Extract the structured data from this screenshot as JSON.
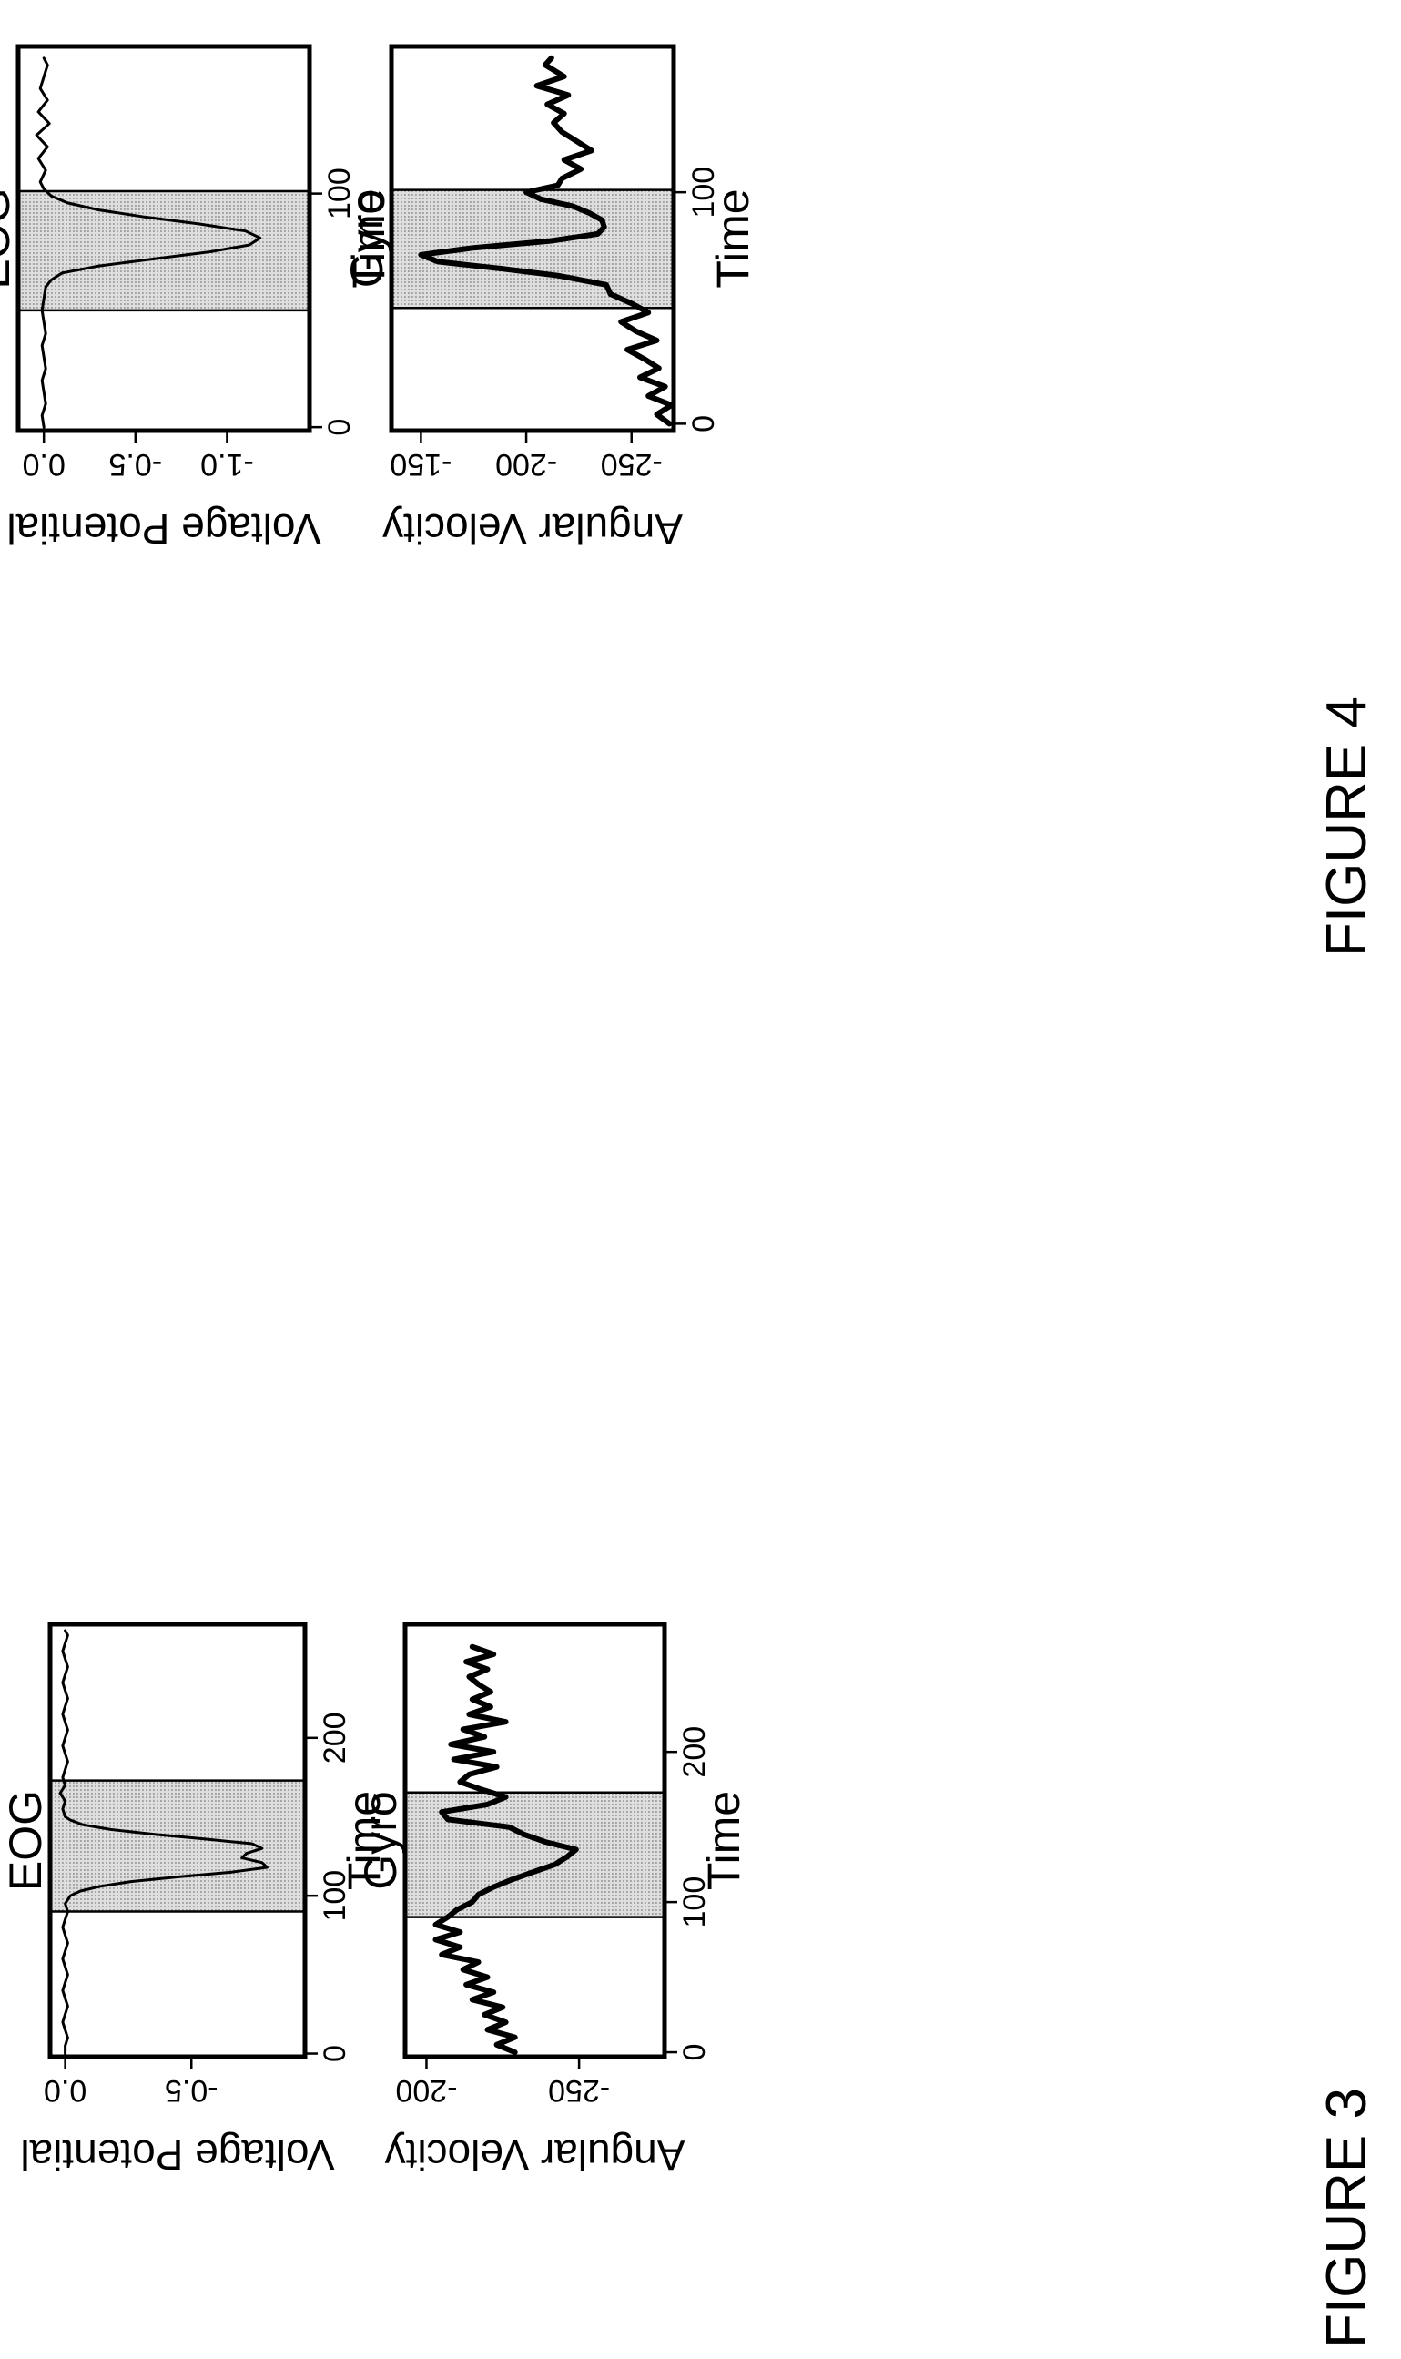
{
  "figures": [
    {
      "caption": "FIGURE 3"
    },
    {
      "caption": "FIGURE 4"
    }
  ],
  "chart_data": [
    {
      "figure": "FIGURE 3",
      "type": "line",
      "title": "EOG",
      "xlabel": "Time",
      "ylabel": "Voltage Potential",
      "xlim": [
        -2,
        272
      ],
      "ylim": [
        -0.95,
        0.06
      ],
      "xticks": [
        0,
        100,
        200
      ],
      "xtick_labels": [
        "0",
        "100",
        "200"
      ],
      "yticks": [
        0.0,
        -0.5
      ],
      "ytick_labels": [
        "0.0",
        "-0.5"
      ],
      "highlight": {
        "x_start": 90,
        "x_end": 173,
        "fill": "#dedede"
      },
      "grid": false,
      "series": [
        {
          "line_width": 3,
          "color": "#000000",
          "x": [
            0,
            5,
            10,
            15,
            20,
            25,
            30,
            35,
            40,
            45,
            50,
            55,
            60,
            65,
            70,
            75,
            80,
            85,
            90,
            95,
            100,
            103,
            106,
            109,
            112,
            115,
            118,
            121,
            124,
            127,
            130,
            133,
            136,
            139,
            142,
            145,
            148,
            150,
            155,
            160,
            165,
            170,
            175,
            180,
            185,
            190,
            195,
            200,
            205,
            210,
            215,
            220,
            225,
            230,
            235,
            240,
            245,
            250,
            255,
            260,
            265,
            268
          ],
          "y": [
            0.0,
            0.0,
            -0.01,
            0.0,
            0.01,
            0.0,
            -0.01,
            0.0,
            0.01,
            0.0,
            -0.01,
            0.0,
            0.01,
            0.0,
            -0.01,
            0.0,
            0.01,
            0.0,
            -0.01,
            0.0,
            -0.02,
            -0.06,
            -0.14,
            -0.26,
            -0.45,
            -0.66,
            -0.8,
            -0.78,
            -0.7,
            -0.72,
            -0.78,
            -0.74,
            -0.55,
            -0.35,
            -0.18,
            -0.07,
            -0.02,
            0.0,
            0.01,
            0.0,
            0.02,
            0.0,
            0.01,
            0.0,
            -0.01,
            0.0,
            0.01,
            0.0,
            -0.01,
            0.0,
            0.01,
            0.0,
            -0.01,
            0.0,
            0.01,
            0.0,
            -0.01,
            0.0,
            0.01,
            0.0,
            -0.01,
            0.0
          ]
        }
      ]
    },
    {
      "figure": "FIGURE 3",
      "type": "line",
      "title": "Gyro",
      "xlabel": "Time",
      "ylabel": "Angular Velocity",
      "xlim": [
        -3,
        285
      ],
      "ylim": [
        -278,
        -193
      ],
      "xticks": [
        0,
        100,
        200
      ],
      "xtick_labels": [
        "0",
        "100",
        "200"
      ],
      "yticks": [
        -200,
        -250
      ],
      "ytick_labels": [
        "-200",
        "-250"
      ],
      "highlight": {
        "x_start": 90,
        "x_end": 173,
        "fill": "#dedede"
      },
      "grid": false,
      "series": [
        {
          "line_width": 6,
          "color": "#000000",
          "x": [
            0,
            5,
            10,
            15,
            20,
            25,
            30,
            35,
            40,
            45,
            50,
            55,
            60,
            65,
            70,
            75,
            80,
            85,
            90,
            95,
            100,
            105,
            110,
            115,
            120,
            125,
            130,
            135,
            140,
            145,
            150,
            155,
            160,
            165,
            170,
            175,
            180,
            185,
            190,
            195,
            200,
            205,
            210,
            215,
            220,
            225,
            230,
            235,
            240,
            245,
            250,
            255,
            260,
            265,
            270
          ],
          "y": [
            -229,
            -223,
            -229,
            -220,
            -226,
            -219,
            -225,
            -215,
            -222,
            -213,
            -220,
            -212,
            -217,
            -205,
            -211,
            -203,
            -211,
            -203,
            -207,
            -210,
            -215,
            -217,
            -222,
            -228,
            -235,
            -242,
            -246,
            -249,
            -239,
            -232,
            -227,
            -207,
            -205,
            -220,
            -226,
            -218,
            -211,
            -214,
            -223,
            -209,
            -222,
            -208,
            -219,
            -212,
            -226,
            -214,
            -221,
            -215,
            -221,
            -217,
            -214,
            -220,
            -213,
            -222,
            -215
          ]
        }
      ]
    },
    {
      "figure": "FIGURE 4",
      "type": "line",
      "title": "EOG",
      "xlabel": "Time",
      "ylabel": "Voltage Potential",
      "xlim": [
        -1.5,
        163
      ],
      "ylim": [
        -1.45,
        0.14
      ],
      "xticks": [
        0,
        100
      ],
      "xtick_labels": [
        "0",
        "100"
      ],
      "yticks": [
        0.0,
        -0.5,
        -1.0
      ],
      "ytick_labels": [
        "0.0",
        "-0.5",
        "-1.0"
      ],
      "highlight": {
        "x_start": 50,
        "x_end": 101,
        "fill": "#dedede"
      },
      "grid": false,
      "series": [
        {
          "line_width": 3,
          "color": "#000000",
          "x": [
            0,
            5,
            10,
            15,
            20,
            25,
            30,
            35,
            40,
            45,
            50,
            55,
            60,
            63,
            66,
            69,
            72,
            75,
            78,
            81,
            84,
            87,
            90,
            93,
            96,
            99,
            102,
            105,
            110,
            115,
            120,
            125,
            130,
            135,
            140,
            145,
            150,
            155,
            158
          ],
          "y": [
            0.0,
            0.01,
            -0.01,
            0.0,
            0.01,
            -0.01,
            0.0,
            0.01,
            -0.01,
            0.0,
            0.01,
            0.0,
            -0.01,
            -0.04,
            -0.1,
            -0.3,
            -0.6,
            -0.9,
            -1.12,
            -1.18,
            -1.1,
            -0.85,
            -0.55,
            -0.3,
            -0.13,
            -0.04,
            0.0,
            0.02,
            -0.01,
            0.03,
            -0.02,
            0.04,
            -0.03,
            0.03,
            -0.02,
            0.02,
            0.0,
            -0.02,
            0.0
          ]
        }
      ]
    },
    {
      "figure": "FIGURE 4",
      "type": "line",
      "title": "Gyro",
      "xlabel": "Time",
      "ylabel": "Angular Velocity",
      "xlim": [
        -3,
        163
      ],
      "ylim": [
        -270,
        -136
      ],
      "xticks": [
        0,
        100
      ],
      "xtick_labels": [
        "0",
        "100"
      ],
      "yticks": [
        -150,
        -200,
        -250
      ],
      "ytick_labels": [
        "-150",
        "-200",
        "-250"
      ],
      "highlight": {
        "x_start": 50,
        "x_end": 101,
        "fill": "#dedede"
      },
      "grid": false,
      "series": [
        {
          "line_width": 6,
          "color": "#000000",
          "x": [
            0,
            4,
            8,
            12,
            16,
            20,
            24,
            28,
            32,
            36,
            40,
            44,
            48,
            52,
            56,
            60,
            64,
            67,
            70,
            73,
            76,
            79,
            82,
            85,
            88,
            91,
            94,
            97,
            100,
            103,
            106,
            110,
            114,
            118,
            122,
            126,
            130,
            134,
            138,
            142,
            146,
            150,
            155,
            158
          ],
          "y": [
            -268,
            -262,
            -269,
            -258,
            -266,
            -254,
            -263,
            -256,
            -248,
            -262,
            -252,
            -245,
            -258,
            -250,
            -240,
            -238,
            -215,
            -188,
            -158,
            -150,
            -175,
            -212,
            -234,
            -237,
            -236,
            -230,
            -222,
            -207,
            -200,
            -215,
            -217,
            -226,
            -218,
            -231,
            -224,
            -217,
            -213,
            -218,
            -210,
            -220,
            -205,
            -218,
            -209,
            -212
          ]
        }
      ]
    }
  ]
}
